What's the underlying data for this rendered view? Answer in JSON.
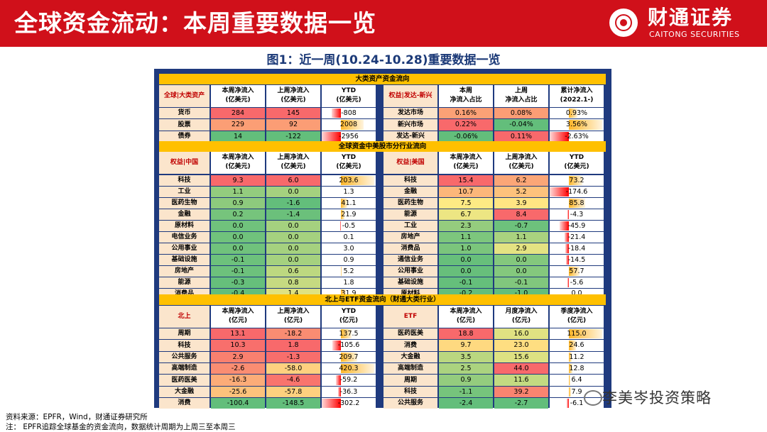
{
  "header": {
    "title": "全球资金流动：本周重要数据一览",
    "brand_cn": "财通证券",
    "brand_en": "CAITONG SECURITIES"
  },
  "figure_title": "图1：近一周(10.24-10.28)重要数据一览",
  "sections": [
    {
      "title": "大类资产资金流向",
      "left": {
        "label": "全球|大类资产",
        "cols": [
          "本周净流入\n(亿美元)",
          "上周净流入\n(亿美元)",
          "YTD\n(亿美元)"
        ],
        "rows": [
          [
            "货币",
            "284",
            "145",
            "-808"
          ],
          [
            "股票",
            "229",
            "92",
            "2008"
          ],
          [
            "债券",
            "14",
            "-122",
            "-2956"
          ]
        ]
      },
      "right": {
        "label": "权益|发达-新兴",
        "cols": [
          "本周\n净流入占比",
          "上周\n净流入占比",
          "累计净流入\n(2022.1-)"
        ],
        "rows": [
          [
            "发达市场",
            "0.16%",
            "0.08%",
            "0.93%"
          ],
          [
            "新兴市场",
            "0.22%",
            "-0.04%",
            "3.56%"
          ],
          [
            "发达-新兴",
            "-0.06%",
            "0.11%",
            "-2.63%"
          ]
        ]
      }
    },
    {
      "title": "全球资金中美股市分行业流向",
      "left": {
        "label": "权益|中国",
        "cols": [
          "本周净流入\n(亿美元)",
          "上周净流入\n(亿美元)",
          "YTD\n(亿美元)"
        ],
        "rows": [
          [
            "科技",
            "9.3",
            "6.0",
            "203.6"
          ],
          [
            "工业",
            "1.1",
            "0.0",
            "1.3"
          ],
          [
            "医药生物",
            "0.9",
            "-1.6",
            "41.1"
          ],
          [
            "金融",
            "0.2",
            "-1.4",
            "21.9"
          ],
          [
            "原材料",
            "0.0",
            "0.0",
            "-0.5"
          ],
          [
            "电信业务",
            "0.0",
            "0.0",
            "0.1"
          ],
          [
            "公用事业",
            "0.0",
            "0.0",
            "3.0"
          ],
          [
            "基础设施",
            "-0.1",
            "0.0",
            "0.9"
          ],
          [
            "房地产",
            "-0.1",
            "0.6",
            "5.2"
          ],
          [
            "能源",
            "-0.3",
            "0.8",
            "1.8"
          ],
          [
            "消费品",
            "-0.4",
            "1.4",
            "31.9"
          ]
        ]
      },
      "right": {
        "label": "权益|美国",
        "cols": [
          "本周净流入\n(亿美元)",
          "上周净流入\n(亿美元)",
          "YTD\n(亿美元)"
        ],
        "rows": [
          [
            "科技",
            "15.4",
            "6.2",
            "73.2"
          ],
          [
            "金融",
            "10.7",
            "5.2",
            "-174.6"
          ],
          [
            "医药生物",
            "7.5",
            "3.9",
            "85.8"
          ],
          [
            "能源",
            "6.7",
            "8.4",
            "-4.3"
          ],
          [
            "工业",
            "2.3",
            "-0.7",
            "-45.9"
          ],
          [
            "房地产",
            "1.1",
            "1.1",
            "-21.4"
          ],
          [
            "消费品",
            "1.0",
            "2.9",
            "-18.4"
          ],
          [
            "通信业务",
            "0.0",
            "0.0",
            "-14.5"
          ],
          [
            "公用事业",
            "0.0",
            "0.0",
            "57.7"
          ],
          [
            "基础设施",
            "-0.1",
            "-0.1",
            "-5.6"
          ],
          [
            "原材料",
            "-0.2",
            "-1.0",
            "0.0"
          ]
        ]
      }
    },
    {
      "title": "北上与ETF资金流向（财通大类行业）",
      "left": {
        "label": "北上",
        "cols": [
          "本周净流入\n(亿元)",
          "上周净流入\n(亿元)",
          "YTD\n(亿元)"
        ],
        "rows": [
          [
            "周期",
            "13.1",
            "-18.2",
            "137.5"
          ],
          [
            "科技",
            "10.3",
            "1.8",
            "-105.6"
          ],
          [
            "公共服务",
            "2.9",
            "-1.3",
            "209.7"
          ],
          [
            "高端制造",
            "-2.6",
            "-58.0",
            "420.3"
          ],
          [
            "医药医美",
            "-16.3",
            "-4.6",
            "-59.2"
          ],
          [
            "大金融",
            "-25.6",
            "-57.8",
            "-36.3"
          ],
          [
            "消费",
            "-100.4",
            "-148.5",
            "-302.2"
          ]
        ]
      },
      "right": {
        "label": "ETF",
        "cols": [
          "本周净流入\n(亿元)",
          "月度净流入\n(亿元)",
          "季度净流入\n(亿元)"
        ],
        "rows": [
          [
            "医药医美",
            "18.8",
            "16.0",
            "115.0"
          ],
          [
            "消费",
            "9.7",
            "23.0",
            "24.6"
          ],
          [
            "大金融",
            "3.5",
            "15.6",
            "11.2"
          ],
          [
            "高端制造",
            "2.5",
            "44.0",
            "12.8"
          ],
          [
            "周期",
            "0.9",
            "11.6",
            "6.4"
          ],
          [
            "科技",
            "-1.1",
            "39.2",
            "7.9"
          ],
          [
            "公共服务",
            "-2.4",
            "-2.7",
            "-6.1"
          ]
        ]
      }
    }
  ],
  "footer": {
    "source": "资料来源：EPFR，Wind，财通证券研究所",
    "note": "注：   EPFR追踪全球基金的资金流向，数据统计周期为上周三至本周三"
  },
  "watermark": "李美岑投资策略",
  "colors": {
    "brand_red": "#d0101a",
    "panel_blue": "#1f3a7e",
    "section_gold": "#ffc000",
    "label_bg": "#fbe5cc",
    "pos_heat": "#f8696b",
    "mid_heat": "#ffeb84",
    "neg_heat": "#63be7b",
    "bar_pos": "#ffb628",
    "bar_neg": "#ff0000"
  }
}
